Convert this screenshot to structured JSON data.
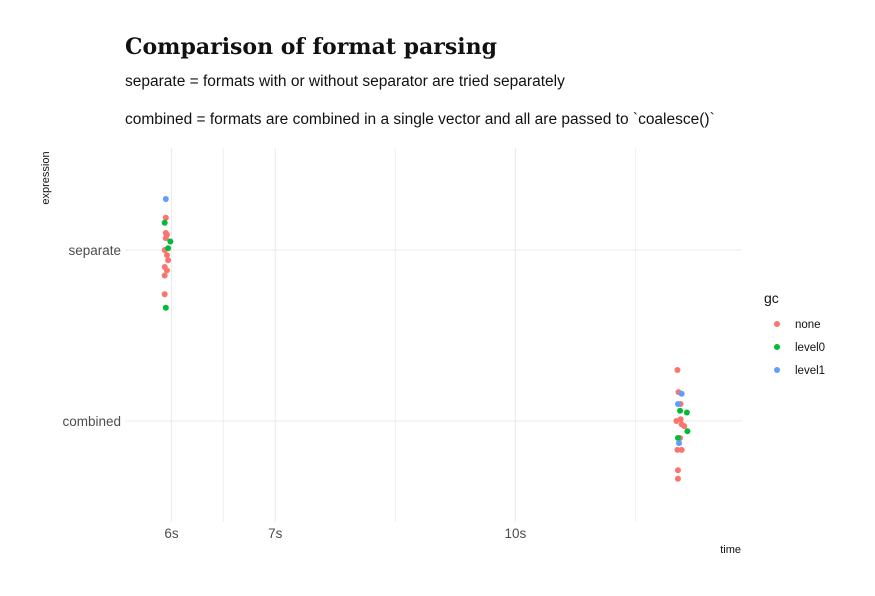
{
  "chart_data": {
    "type": "scatter",
    "title": "Comparison of format parsing",
    "subtitle_lines": [
      "separate = formats with or without separator are tried separately",
      "combined = formats are combined in a single vector and all are passed to `coalesce()`"
    ],
    "xlabel": "time",
    "ylabel": "expression",
    "x_scale": "log",
    "x_ticks": [
      {
        "value": 6,
        "label": "6s"
      },
      {
        "value": 7,
        "label": "7s"
      },
      {
        "value": 10,
        "label": "10s"
      }
    ],
    "xlim": [
      5.6,
      14.0
    ],
    "categories": [
      "separate",
      "combined"
    ],
    "grid": true,
    "legend": {
      "title": "gc",
      "position": "right",
      "entries": [
        {
          "name": "none",
          "color": "#F8766D"
        },
        {
          "name": "level0",
          "color": "#00BA38"
        },
        {
          "name": "level1",
          "color": "#619CFF"
        }
      ]
    },
    "series": [
      {
        "name": "none",
        "color": "#F8766D",
        "points": [
          {
            "category": "separate",
            "x": 5.95,
            "jitter": 0.19
          },
          {
            "category": "separate",
            "x": 5.95,
            "jitter": 0.1
          },
          {
            "category": "separate",
            "x": 5.96,
            "jitter": 0.09
          },
          {
            "category": "separate",
            "x": 5.95,
            "jitter": 0.07
          },
          {
            "category": "separate",
            "x": 5.94,
            "jitter": 0.0
          },
          {
            "category": "separate",
            "x": 5.96,
            "jitter": -0.03
          },
          {
            "category": "separate",
            "x": 5.97,
            "jitter": -0.06
          },
          {
            "category": "separate",
            "x": 5.94,
            "jitter": -0.1
          },
          {
            "category": "separate",
            "x": 5.96,
            "jitter": -0.12
          },
          {
            "category": "separate",
            "x": 5.94,
            "jitter": -0.15
          },
          {
            "category": "separate",
            "x": 5.94,
            "jitter": -0.26
          },
          {
            "category": "combined",
            "x": 12.72,
            "jitter": 0.3
          },
          {
            "category": "combined",
            "x": 12.74,
            "jitter": 0.17
          },
          {
            "category": "combined",
            "x": 12.78,
            "jitter": 0.1
          },
          {
            "category": "combined",
            "x": 12.7,
            "jitter": 0.0
          },
          {
            "category": "combined",
            "x": 12.78,
            "jitter": 0.01
          },
          {
            "category": "combined",
            "x": 12.8,
            "jitter": -0.02
          },
          {
            "category": "combined",
            "x": 12.85,
            "jitter": -0.03
          },
          {
            "category": "combined",
            "x": 12.77,
            "jitter": -0.1
          },
          {
            "category": "combined",
            "x": 12.72,
            "jitter": -0.17
          },
          {
            "category": "combined",
            "x": 12.8,
            "jitter": -0.17
          },
          {
            "category": "combined",
            "x": 12.73,
            "jitter": -0.29
          },
          {
            "category": "combined",
            "x": 12.73,
            "jitter": -0.34
          }
        ]
      },
      {
        "name": "level0",
        "color": "#00BA38",
        "points": [
          {
            "category": "separate",
            "x": 5.94,
            "jitter": 0.16
          },
          {
            "category": "separate",
            "x": 5.99,
            "jitter": 0.05
          },
          {
            "category": "separate",
            "x": 5.97,
            "jitter": 0.01
          },
          {
            "category": "separate",
            "x": 5.95,
            "jitter": -0.34
          },
          {
            "category": "combined",
            "x": 12.77,
            "jitter": 0.06
          },
          {
            "category": "combined",
            "x": 12.9,
            "jitter": 0.05
          },
          {
            "category": "combined",
            "x": 12.91,
            "jitter": -0.06
          },
          {
            "category": "combined",
            "x": 12.73,
            "jitter": -0.1
          }
        ]
      },
      {
        "name": "level1",
        "color": "#619CFF",
        "points": [
          {
            "category": "separate",
            "x": 5.95,
            "jitter": 0.3
          },
          {
            "category": "combined",
            "x": 12.8,
            "jitter": 0.16
          },
          {
            "category": "combined",
            "x": 12.73,
            "jitter": 0.1
          },
          {
            "category": "combined",
            "x": 12.75,
            "jitter": -0.13
          }
        ]
      }
    ]
  }
}
